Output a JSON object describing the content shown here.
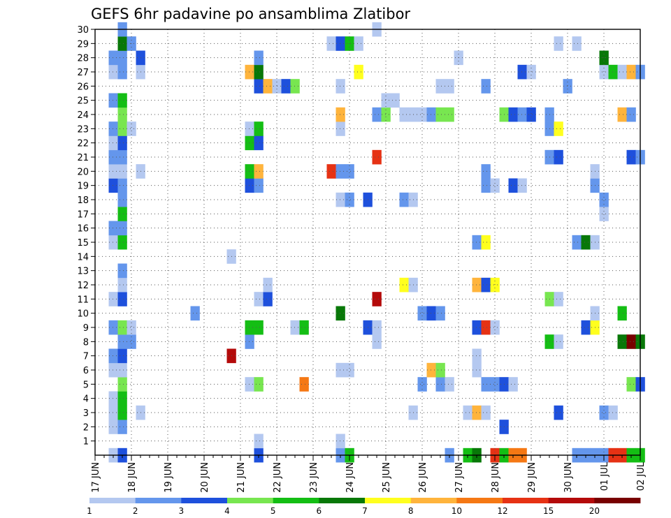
{
  "chart_data": {
    "type": "heatmap",
    "title": "GEFS 6hr padavine po ansamblima Zlatibor",
    "xlabel": "",
    "ylabel": "",
    "x_tick_labels": [
      "17 JUN",
      "18 JUN",
      "19 JUN",
      "20 JUN",
      "21 JUN",
      "22 JUN",
      "23 JUN",
      "24 JUN",
      "25 JUN",
      "26 JUN",
      "27 JUN",
      "28 JUN",
      "29 JUN",
      "30 JUN",
      "01 JUL",
      "02 JUL"
    ],
    "y_tick_labels": [
      "1",
      "2",
      "3",
      "4",
      "5",
      "6",
      "7",
      "8",
      "9",
      "10",
      "11",
      "12",
      "13",
      "14",
      "15",
      "16",
      "17",
      "18",
      "19",
      "20",
      "21",
      "22",
      "23",
      "24",
      "25",
      "26",
      "27",
      "28",
      "29",
      "30"
    ],
    "x_units": "6-hour steps from 17 JUN 00Z",
    "x_range": [
      0,
      60
    ],
    "y_range": [
      0,
      30
    ],
    "grid": true,
    "colorbar": {
      "position": "bottom",
      "labels": [
        "1",
        "2",
        "3",
        "4",
        "5",
        "6",
        "7",
        "8",
        "10",
        "12",
        "15",
        "20"
      ],
      "colors": [
        "#b4c8f0",
        "#6496ec",
        "#1e50dc",
        "#78e650",
        "#14be14",
        "#087808",
        "#ffff1e",
        "#ffb43c",
        "#f57814",
        "#e63214",
        "#b40a0a",
        "#780000"
      ]
    },
    "cells": [
      [
        2,
        0,
        1
      ],
      [
        3,
        0,
        3
      ],
      [
        18,
        0,
        3
      ],
      [
        27,
        0,
        2
      ],
      [
        28,
        0,
        5
      ],
      [
        39,
        0,
        2
      ],
      [
        41,
        0,
        5
      ],
      [
        42,
        0,
        6
      ],
      [
        44,
        0,
        10
      ],
      [
        45,
        0,
        5
      ],
      [
        46,
        0,
        9
      ],
      [
        47,
        0,
        9
      ],
      [
        53,
        0,
        2
      ],
      [
        54,
        0,
        2
      ],
      [
        55,
        0,
        2
      ],
      [
        56,
        0,
        2
      ],
      [
        57,
        0,
        10
      ],
      [
        58,
        0,
        10
      ],
      [
        59,
        0,
        5
      ],
      [
        60,
        0,
        5
      ],
      [
        18,
        1,
        1
      ],
      [
        27,
        1,
        1
      ],
      [
        2,
        2,
        1
      ],
      [
        3,
        2,
        2
      ],
      [
        45,
        2,
        3
      ],
      [
        2,
        3,
        1
      ],
      [
        3,
        3,
        5
      ],
      [
        5,
        3,
        1
      ],
      [
        35,
        3,
        1
      ],
      [
        41,
        3,
        1
      ],
      [
        42,
        3,
        8
      ],
      [
        43,
        3,
        1
      ],
      [
        51,
        3,
        3
      ],
      [
        56,
        3,
        2
      ],
      [
        57,
        3,
        1
      ],
      [
        2,
        4,
        1
      ],
      [
        3,
        4,
        5
      ],
      [
        3,
        5,
        4
      ],
      [
        17,
        5,
        1
      ],
      [
        18,
        5,
        4
      ],
      [
        23,
        5,
        9
      ],
      [
        36,
        5,
        2
      ],
      [
        38,
        5,
        2
      ],
      [
        39,
        5,
        1
      ],
      [
        43,
        5,
        2
      ],
      [
        44,
        5,
        2
      ],
      [
        45,
        5,
        3
      ],
      [
        46,
        5,
        1
      ],
      [
        59,
        5,
        4
      ],
      [
        60,
        5,
        3
      ],
      [
        2,
        6,
        1
      ],
      [
        3,
        6,
        1
      ],
      [
        27,
        6,
        1
      ],
      [
        28,
        6,
        1
      ],
      [
        37,
        6,
        8
      ],
      [
        38,
        6,
        4
      ],
      [
        42,
        6,
        1
      ],
      [
        2,
        7,
        2
      ],
      [
        3,
        7,
        3
      ],
      [
        15,
        7,
        11
      ],
      [
        42,
        7,
        1
      ],
      [
        3,
        8,
        2
      ],
      [
        4,
        8,
        2
      ],
      [
        17,
        8,
        2
      ],
      [
        31,
        8,
        1
      ],
      [
        50,
        8,
        5
      ],
      [
        51,
        8,
        1
      ],
      [
        58,
        8,
        6
      ],
      [
        59,
        8,
        12
      ],
      [
        60,
        8,
        6
      ],
      [
        2,
        9,
        2
      ],
      [
        3,
        9,
        4
      ],
      [
        4,
        9,
        1
      ],
      [
        17,
        9,
        5
      ],
      [
        18,
        9,
        5
      ],
      [
        22,
        9,
        1
      ],
      [
        23,
        9,
        5
      ],
      [
        30,
        9,
        3
      ],
      [
        31,
        9,
        1
      ],
      [
        42,
        9,
        3
      ],
      [
        43,
        9,
        10
      ],
      [
        44,
        9,
        1
      ],
      [
        54,
        9,
        3
      ],
      [
        55,
        9,
        7
      ],
      [
        11,
        10,
        2
      ],
      [
        27,
        10,
        6
      ],
      [
        36,
        10,
        2
      ],
      [
        37,
        10,
        3
      ],
      [
        38,
        10,
        2
      ],
      [
        55,
        10,
        1
      ],
      [
        58,
        10,
        5
      ],
      [
        2,
        11,
        1
      ],
      [
        3,
        11,
        3
      ],
      [
        18,
        11,
        1
      ],
      [
        19,
        11,
        3
      ],
      [
        31,
        11,
        11
      ],
      [
        50,
        11,
        4
      ],
      [
        51,
        11,
        1
      ],
      [
        3,
        12,
        1
      ],
      [
        19,
        12,
        1
      ],
      [
        34,
        12,
        7
      ],
      [
        35,
        12,
        1
      ],
      [
        42,
        12,
        8
      ],
      [
        43,
        12,
        3
      ],
      [
        44,
        12,
        7
      ],
      [
        3,
        13,
        2
      ],
      [
        15,
        14,
        1
      ],
      [
        2,
        15,
        1
      ],
      [
        3,
        15,
        5
      ],
      [
        42,
        15,
        2
      ],
      [
        43,
        15,
        7
      ],
      [
        53,
        15,
        2
      ],
      [
        54,
        15,
        6
      ],
      [
        55,
        15,
        1
      ],
      [
        2,
        16,
        2
      ],
      [
        3,
        16,
        2
      ],
      [
        3,
        17,
        5
      ],
      [
        56,
        17,
        1
      ],
      [
        3,
        18,
        2
      ],
      [
        27,
        18,
        1
      ],
      [
        28,
        18,
        2
      ],
      [
        30,
        18,
        3
      ],
      [
        34,
        18,
        2
      ],
      [
        35,
        18,
        1
      ],
      [
        56,
        18,
        2
      ],
      [
        2,
        19,
        3
      ],
      [
        3,
        19,
        2
      ],
      [
        17,
        19,
        3
      ],
      [
        18,
        19,
        2
      ],
      [
        43,
        19,
        2
      ],
      [
        44,
        19,
        1
      ],
      [
        46,
        19,
        3
      ],
      [
        47,
        19,
        1
      ],
      [
        55,
        19,
        2
      ],
      [
        2,
        20,
        1
      ],
      [
        3,
        20,
        1
      ],
      [
        5,
        20,
        1
      ],
      [
        17,
        20,
        5
      ],
      [
        18,
        20,
        8
      ],
      [
        26,
        20,
        10
      ],
      [
        27,
        20,
        2
      ],
      [
        28,
        20,
        2
      ],
      [
        43,
        20,
        2
      ],
      [
        55,
        20,
        1
      ],
      [
        2,
        21,
        2
      ],
      [
        3,
        21,
        2
      ],
      [
        31,
        21,
        10
      ],
      [
        50,
        21,
        2
      ],
      [
        51,
        21,
        3
      ],
      [
        59,
        21,
        3
      ],
      [
        60,
        21,
        2
      ],
      [
        2,
        22,
        1
      ],
      [
        3,
        22,
        3
      ],
      [
        17,
        22,
        5
      ],
      [
        18,
        22,
        3
      ],
      [
        2,
        23,
        2
      ],
      [
        3,
        23,
        4
      ],
      [
        4,
        23,
        1
      ],
      [
        17,
        23,
        1
      ],
      [
        18,
        23,
        5
      ],
      [
        27,
        23,
        1
      ],
      [
        50,
        23,
        2
      ],
      [
        51,
        23,
        7
      ],
      [
        3,
        24,
        4
      ],
      [
        27,
        24,
        8
      ],
      [
        31,
        24,
        2
      ],
      [
        32,
        24,
        4
      ],
      [
        34,
        24,
        1
      ],
      [
        35,
        24,
        1
      ],
      [
        36,
        24,
        1
      ],
      [
        37,
        24,
        2
      ],
      [
        38,
        24,
        4
      ],
      [
        39,
        24,
        4
      ],
      [
        45,
        24,
        4
      ],
      [
        46,
        24,
        3
      ],
      [
        47,
        24,
        2
      ],
      [
        48,
        24,
        3
      ],
      [
        50,
        24,
        2
      ],
      [
        58,
        24,
        8
      ],
      [
        59,
        24,
        2
      ],
      [
        2,
        25,
        2
      ],
      [
        3,
        25,
        5
      ],
      [
        32,
        25,
        1
      ],
      [
        33,
        25,
        1
      ],
      [
        18,
        26,
        3
      ],
      [
        19,
        26,
        8
      ],
      [
        20,
        26,
        1
      ],
      [
        21,
        26,
        3
      ],
      [
        22,
        26,
        4
      ],
      [
        27,
        26,
        1
      ],
      [
        38,
        26,
        1
      ],
      [
        39,
        26,
        1
      ],
      [
        43,
        26,
        2
      ],
      [
        52,
        26,
        2
      ],
      [
        2,
        27,
        1
      ],
      [
        3,
        27,
        2
      ],
      [
        5,
        27,
        1
      ],
      [
        17,
        27,
        8
      ],
      [
        18,
        27,
        6
      ],
      [
        29,
        27,
        7
      ],
      [
        47,
        27,
        3
      ],
      [
        48,
        27,
        1
      ],
      [
        56,
        27,
        1
      ],
      [
        57,
        27,
        5
      ],
      [
        58,
        27,
        1
      ],
      [
        59,
        27,
        8
      ],
      [
        60,
        27,
        2
      ],
      [
        2,
        28,
        2
      ],
      [
        3,
        28,
        2
      ],
      [
        5,
        28,
        3
      ],
      [
        18,
        28,
        2
      ],
      [
        40,
        28,
        1
      ],
      [
        56,
        28,
        6
      ],
      [
        3,
        29,
        6
      ],
      [
        4,
        29,
        2
      ],
      [
        26,
        29,
        1
      ],
      [
        27,
        29,
        3
      ],
      [
        28,
        29,
        5
      ],
      [
        29,
        29,
        1
      ],
      [
        51,
        29,
        1
      ],
      [
        53,
        29,
        1
      ],
      [
        3,
        30,
        2
      ],
      [
        31,
        30,
        1
      ]
    ]
  }
}
